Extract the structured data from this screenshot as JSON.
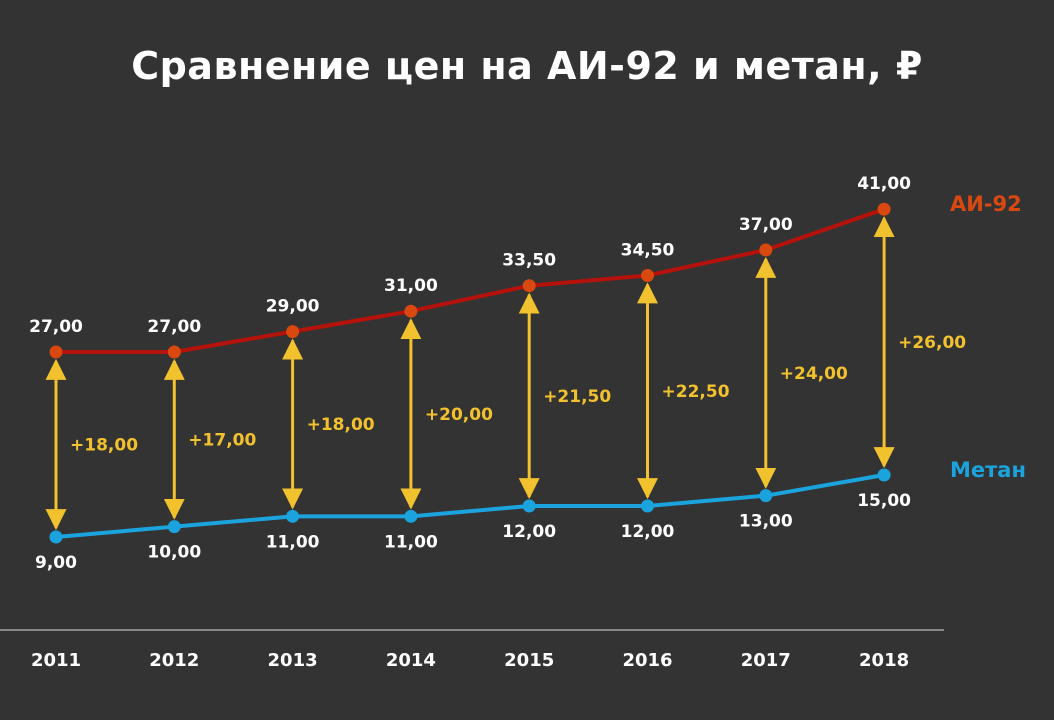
{
  "chart_data": {
    "type": "line",
    "title": "Сравнение цен на АИ-92 и метан, ₽",
    "categories": [
      "2011",
      "2012",
      "2013",
      "2014",
      "2015",
      "2016",
      "2017",
      "2018"
    ],
    "series": [
      {
        "name": "АИ-92",
        "color": "#b5120c",
        "marker_color": "#d9480f",
        "name_color": "#d9480f",
        "values": [
          27.0,
          27.0,
          29.0,
          31.0,
          33.5,
          34.5,
          37.0,
          41.0
        ],
        "labels": [
          "27,00",
          "27,00",
          "29,00",
          "31,00",
          "33,50",
          "34,50",
          "37,00",
          "41,00"
        ]
      },
      {
        "name": "Метан",
        "color": "#1aa3dc",
        "marker_color": "#1aa3dc",
        "name_color": "#1aa3dc",
        "values": [
          9.0,
          10.0,
          11.0,
          11.0,
          12.0,
          12.0,
          13.0,
          15.0
        ],
        "labels": [
          "9,00",
          "10,00",
          "11,00",
          "11,00",
          "12,00",
          "12,00",
          "13,00",
          "15,00"
        ]
      }
    ],
    "differences": {
      "color": "#f2c12e",
      "values": [
        18.0,
        17.0,
        18.0,
        20.0,
        21.5,
        22.5,
        24.0,
        26.0
      ],
      "labels": [
        "+18,00",
        "+17,00",
        "+18,00",
        "+20,00",
        "+21,50",
        "+22,50",
        "+24,00",
        "+26,00"
      ]
    },
    "grid": false,
    "legend": "inline-right"
  }
}
